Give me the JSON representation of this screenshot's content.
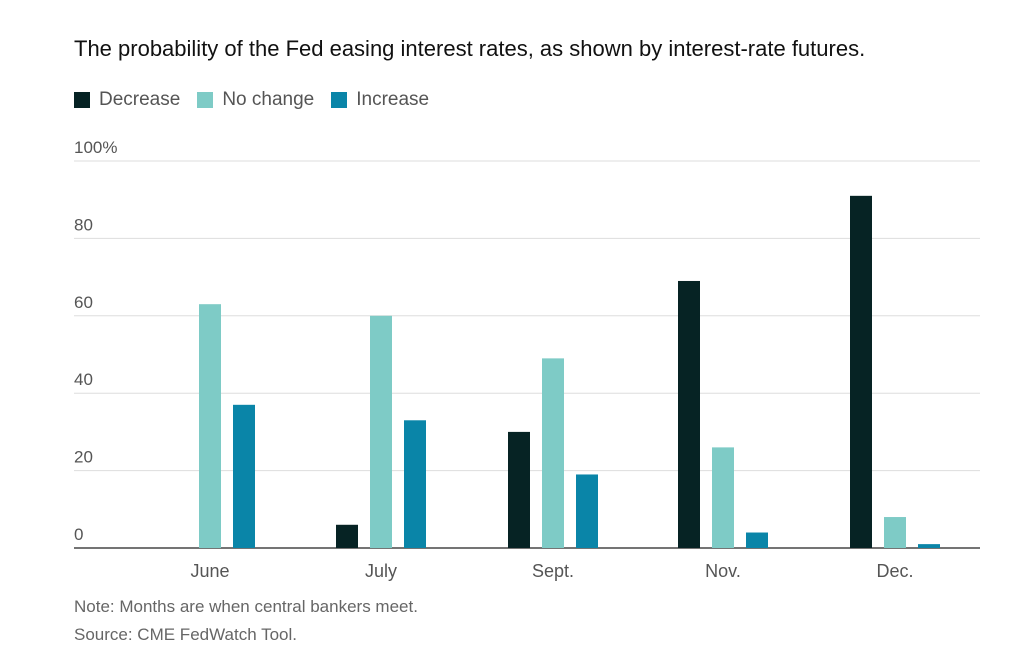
{
  "title": "The probability of the Fed easing interest rates, as shown by interest-rate futures.",
  "legend": [
    {
      "label": "Decrease",
      "color": "#062324"
    },
    {
      "label": "No change",
      "color": "#7ecbc6"
    },
    {
      "label": "Increase",
      "color": "#0a85a8"
    }
  ],
  "notes": {
    "note": "Note: Months are when central bankers meet.",
    "source": "Source: CME FedWatch Tool."
  },
  "chart_data": {
    "type": "bar",
    "title": "The probability of the Fed easing interest rates, as shown by interest-rate futures.",
    "categories": [
      "June",
      "July",
      "Sept.",
      "Nov.",
      "Dec."
    ],
    "series": [
      {
        "name": "Decrease",
        "color": "#062324",
        "values": [
          0,
          6,
          30,
          69,
          91
        ]
      },
      {
        "name": "No change",
        "color": "#7ecbc6",
        "values": [
          63,
          60,
          49,
          26,
          8
        ]
      },
      {
        "name": "Increase",
        "color": "#0a85a8",
        "values": [
          37,
          33,
          19,
          4,
          1
        ]
      }
    ],
    "yticks": [
      "0",
      "20",
      "40",
      "60",
      "80",
      "100%"
    ],
    "ylim": [
      0,
      100
    ],
    "xlabel": "",
    "ylabel": "",
    "grid": true,
    "legend_position": "top-left"
  }
}
